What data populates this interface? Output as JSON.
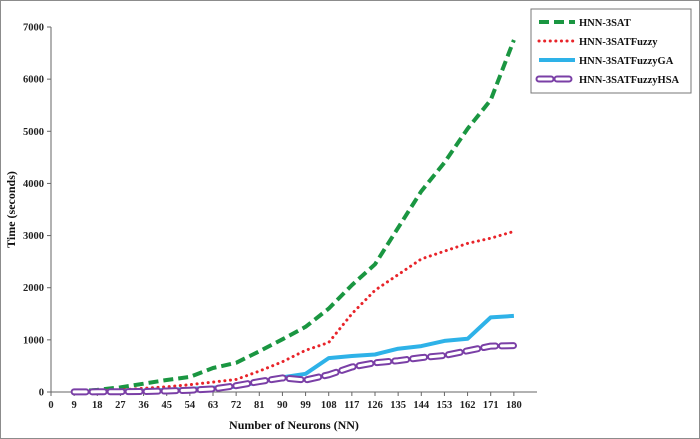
{
  "chart_data": {
    "type": "line",
    "title": "",
    "xlabel": "Number of Neurons (NN)",
    "ylabel": "Time (seconds)",
    "x": [
      9,
      18,
      27,
      36,
      45,
      54,
      63,
      72,
      81,
      90,
      99,
      108,
      117,
      126,
      135,
      144,
      153,
      162,
      171,
      180
    ],
    "x_ticks": [
      "0",
      "9",
      "18",
      "27",
      "36",
      "45",
      "54",
      "63",
      "72",
      "81",
      "90",
      "99",
      "108",
      "117",
      "126",
      "135",
      "144",
      "153",
      "162",
      "171",
      "180"
    ],
    "xlim": [
      0,
      189
    ],
    "ylim": [
      0,
      7000
    ],
    "y_ticks": [
      0,
      1000,
      2000,
      3000,
      4000,
      5000,
      6000,
      7000
    ],
    "grid": false,
    "legend_position": "top-right",
    "series": [
      {
        "name": "HNN-3SAT",
        "style": "dashed",
        "color": "#1a9641",
        "values": [
          5,
          40,
          90,
          160,
          230,
          290,
          460,
          560,
          780,
          1010,
          1250,
          1600,
          2050,
          2450,
          3150,
          3850,
          4400,
          5050,
          5600,
          6750
        ]
      },
      {
        "name": "HNN-3SATFuzzy",
        "style": "dotted",
        "color": "#e8242a",
        "values": [
          2,
          20,
          40,
          70,
          100,
          140,
          190,
          240,
          400,
          580,
          800,
          950,
          1500,
          1950,
          2250,
          2550,
          2700,
          2850,
          2950,
          3080
        ]
      },
      {
        "name": "HNN-3SATFuzzyGA",
        "style": "solid",
        "color": "#2eb2e8",
        "values": [
          1,
          5,
          15,
          25,
          40,
          60,
          85,
          100,
          190,
          280,
          350,
          650,
          690,
          720,
          830,
          880,
          980,
          1020,
          1430,
          1460
        ]
      },
      {
        "name": "HNN-3SATFuzzyHSA",
        "style": "dash-outline",
        "color": "#7a3fa6",
        "values": [
          1,
          3,
          6,
          10,
          20,
          35,
          60,
          120,
          200,
          270,
          230,
          330,
          480,
          560,
          600,
          660,
          700,
          790,
          880,
          890
        ]
      }
    ]
  }
}
